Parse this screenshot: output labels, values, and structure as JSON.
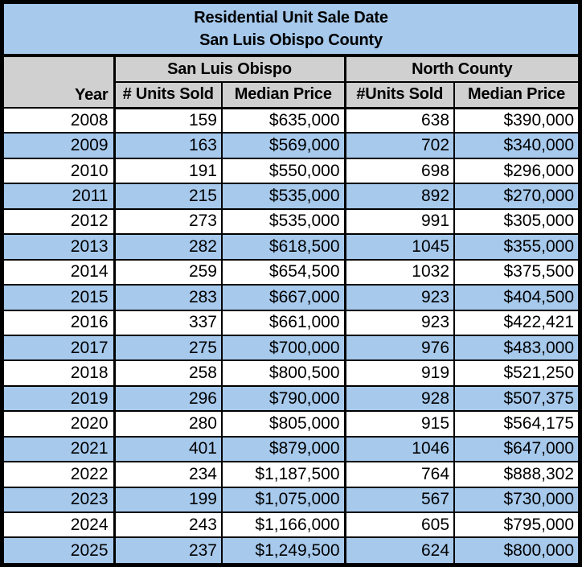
{
  "table": {
    "title_line1": "Residential Unit Sale Date",
    "title_line2": "San Luis Obispo County",
    "year_header": "Year",
    "groups": [
      {
        "label": "San Luis Obispo",
        "columns": [
          "# Units Sold",
          "Median Price"
        ]
      },
      {
        "label": "North County",
        "columns": [
          "#Units Sold",
          "Median Price"
        ]
      }
    ],
    "rows": [
      {
        "year": "2008",
        "slo_units": "159",
        "slo_price": "$635,000",
        "nc_units": "638",
        "nc_price": "$390,000"
      },
      {
        "year": "2009",
        "slo_units": "163",
        "slo_price": "$569,000",
        "nc_units": "702",
        "nc_price": "$340,000"
      },
      {
        "year": "2010",
        "slo_units": "191",
        "slo_price": "$550,000",
        "nc_units": "698",
        "nc_price": "$296,000"
      },
      {
        "year": "2011",
        "slo_units": "215",
        "slo_price": "$535,000",
        "nc_units": "892",
        "nc_price": "$270,000"
      },
      {
        "year": "2012",
        "slo_units": "273",
        "slo_price": "$535,000",
        "nc_units": "991",
        "nc_price": "$305,000"
      },
      {
        "year": "2013",
        "slo_units": "282",
        "slo_price": "$618,500",
        "nc_units": "1045",
        "nc_price": "$355,000"
      },
      {
        "year": "2014",
        "slo_units": "259",
        "slo_price": "$654,500",
        "nc_units": "1032",
        "nc_price": "$375,500"
      },
      {
        "year": "2015",
        "slo_units": "283",
        "slo_price": "$667,000",
        "nc_units": "923",
        "nc_price": "$404,500"
      },
      {
        "year": "2016",
        "slo_units": "337",
        "slo_price": "$661,000",
        "nc_units": "923",
        "nc_price": "$422,421"
      },
      {
        "year": "2017",
        "slo_units": "275",
        "slo_price": "$700,000",
        "nc_units": "976",
        "nc_price": "$483,000"
      },
      {
        "year": "2018",
        "slo_units": "258",
        "slo_price": "$800,500",
        "nc_units": "919",
        "nc_price": "$521,250"
      },
      {
        "year": "2019",
        "slo_units": "296",
        "slo_price": "$790,000",
        "nc_units": "928",
        "nc_price": "$507,375"
      },
      {
        "year": "2020",
        "slo_units": "280",
        "slo_price": "$805,000",
        "nc_units": "915",
        "nc_price": "$564,175"
      },
      {
        "year": "2021",
        "slo_units": "401",
        "slo_price": "$879,000",
        "nc_units": "1046",
        "nc_price": "$647,000"
      },
      {
        "year": "2022",
        "slo_units": "234",
        "slo_price": "$1,187,500",
        "nc_units": "764",
        "nc_price": "$888,302"
      },
      {
        "year": "2023",
        "slo_units": "199",
        "slo_price": "$1,075,000",
        "nc_units": "567",
        "nc_price": "$730,000"
      },
      {
        "year": "2024",
        "slo_units": "243",
        "slo_price": "$1,166,000",
        "nc_units": "605",
        "nc_price": "$795,000"
      },
      {
        "year": "2025",
        "slo_units": "237",
        "slo_price": "$1,249,500",
        "nc_units": "624",
        "nc_price": "$800,000"
      }
    ]
  },
  "colors": {
    "accent_blue": "#A6C9EC",
    "header_gray": "#D0D0D0",
    "border_black": "#000000",
    "row_white": "#FFFFFF"
  },
  "chart_data": {
    "type": "table",
    "title": "Residential Unit Sale Date",
    "subtitle": "San Luis Obispo County",
    "columns": [
      "Year",
      "San Luis Obispo # Units Sold",
      "San Luis Obispo Median Price",
      "North County #Units Sold",
      "North County Median Price"
    ],
    "rows": [
      [
        2008,
        159,
        635000,
        638,
        390000
      ],
      [
        2009,
        163,
        569000,
        702,
        340000
      ],
      [
        2010,
        191,
        550000,
        698,
        296000
      ],
      [
        2011,
        215,
        535000,
        892,
        270000
      ],
      [
        2012,
        273,
        535000,
        991,
        305000
      ],
      [
        2013,
        282,
        618500,
        1045,
        355000
      ],
      [
        2014,
        259,
        654500,
        1032,
        375500
      ],
      [
        2015,
        283,
        667000,
        923,
        404500
      ],
      [
        2016,
        337,
        661000,
        923,
        422421
      ],
      [
        2017,
        275,
        700000,
        976,
        483000
      ],
      [
        2018,
        258,
        800500,
        919,
        521250
      ],
      [
        2019,
        296,
        790000,
        928,
        507375
      ],
      [
        2020,
        280,
        805000,
        915,
        564175
      ],
      [
        2021,
        401,
        879000,
        1046,
        647000
      ],
      [
        2022,
        234,
        1187500,
        764,
        888302
      ],
      [
        2023,
        199,
        1075000,
        567,
        730000
      ],
      [
        2024,
        243,
        1166000,
        605,
        795000
      ],
      [
        2025,
        237,
        1249500,
        624,
        800000
      ]
    ],
    "layout": {
      "striped_rows": true,
      "stripe_color": "#A6C9EC",
      "header_color": "#D0D0D0",
      "grid": true
    }
  }
}
